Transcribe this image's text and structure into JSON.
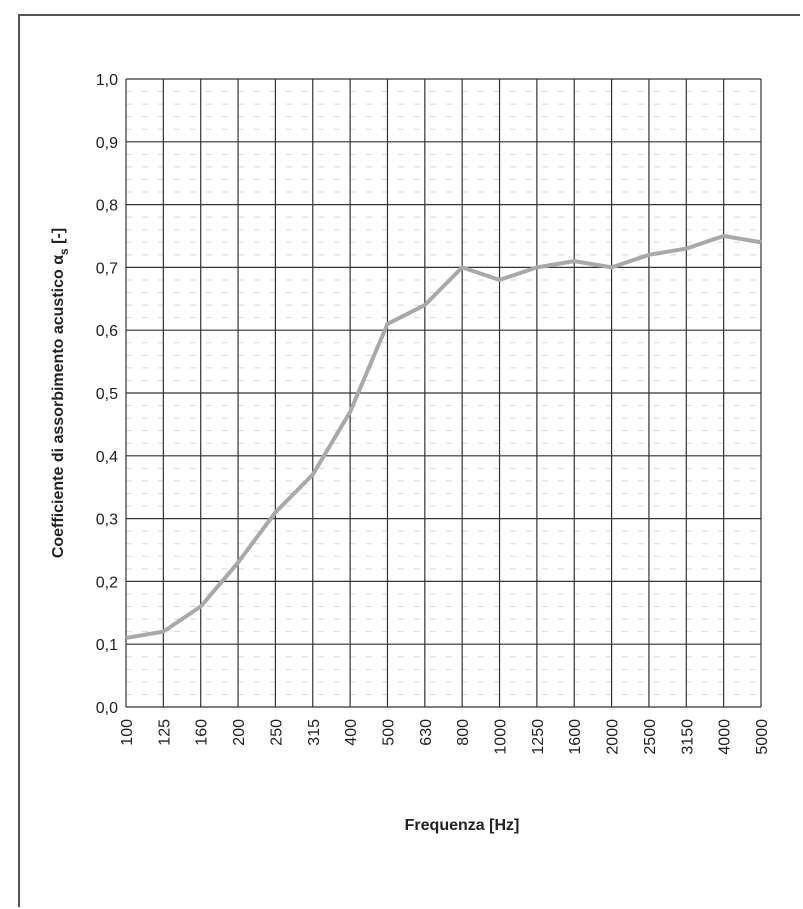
{
  "chart_data": {
    "type": "line",
    "title": "",
    "xlabel": "Frequenza [Hz]",
    "ylabel_main": "Coefficiente di assorbimento acustico α",
    "ylabel_sub": "s",
    "ylabel_tail": " [-]",
    "categories": [
      "100",
      "125",
      "160",
      "200",
      "250",
      "315",
      "400",
      "500",
      "630",
      "800",
      "1000",
      "1250",
      "1600",
      "2000",
      "2500",
      "3150",
      "4000",
      "5000"
    ],
    "series": [
      {
        "values": [
          0.11,
          0.12,
          0.16,
          0.23,
          0.31,
          0.37,
          0.47,
          0.61,
          0.64,
          0.7,
          0.68,
          0.7,
          0.71,
          0.7,
          0.72,
          0.73,
          0.75,
          0.74
        ]
      }
    ],
    "ylim": [
      0,
      1.0
    ],
    "yticks": [
      "0,0",
      "0,1",
      "0,2",
      "0,3",
      "0,4",
      "0,5",
      "0,6",
      "0,7",
      "0,8",
      "0,9",
      "1,0"
    ],
    "grid": true,
    "line_color": "#a9a9a9"
  }
}
